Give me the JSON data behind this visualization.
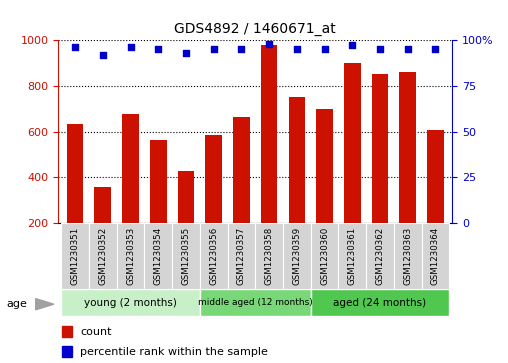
{
  "title": "GDS4892 / 1460671_at",
  "samples": [
    "GSM1230351",
    "GSM1230352",
    "GSM1230353",
    "GSM1230354",
    "GSM1230355",
    "GSM1230356",
    "GSM1230357",
    "GSM1230358",
    "GSM1230359",
    "GSM1230360",
    "GSM1230361",
    "GSM1230362",
    "GSM1230363",
    "GSM1230364"
  ],
  "counts": [
    635,
    360,
    675,
    565,
    430,
    585,
    665,
    980,
    750,
    700,
    900,
    850,
    860,
    605
  ],
  "percentiles": [
    96,
    92,
    96,
    95,
    93,
    95,
    95,
    98,
    95,
    95,
    97,
    95,
    95,
    95
  ],
  "groups": [
    {
      "label": "young (2 months)",
      "start": 0,
      "end": 5,
      "color": "#C8F0C8"
    },
    {
      "label": "middle aged (12 months)",
      "start": 5,
      "end": 9,
      "color": "#78D878"
    },
    {
      "label": "aged (24 months)",
      "start": 9,
      "end": 14,
      "color": "#50C850"
    }
  ],
  "bar_color": "#CC1100",
  "dot_color": "#0000CC",
  "ylim_left": [
    200,
    1000
  ],
  "ylim_right": [
    0,
    100
  ],
  "yticks_left": [
    200,
    400,
    600,
    800,
    1000
  ],
  "yticks_right": [
    0,
    25,
    50,
    75,
    100
  ],
  "grid_color": "black",
  "sample_box_color": "#D4D4D4",
  "age_label": "age",
  "legend_count": "count",
  "legend_percentile": "percentile rank within the sample"
}
